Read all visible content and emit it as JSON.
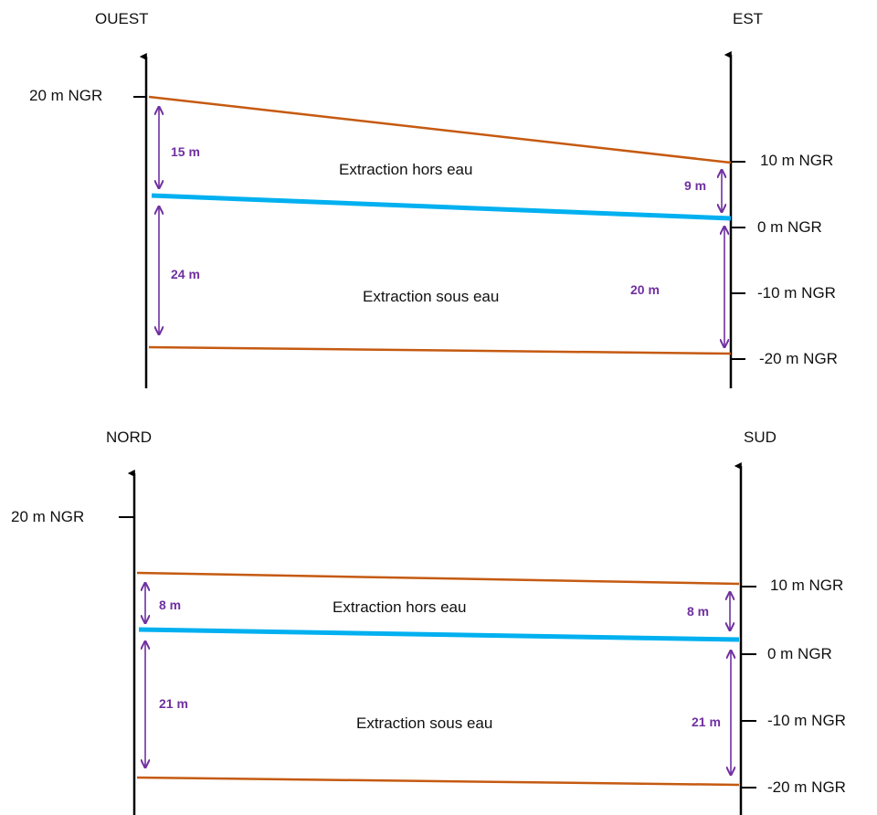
{
  "colors": {
    "terrain": "#c55a11",
    "water": "#00b0f0",
    "dimension": "#7030a0",
    "axis": "#000000"
  },
  "section_ouest_est": {
    "left_title": "OUEST",
    "right_title": "EST",
    "left_label_top": "20 m NGR",
    "right_labels": [
      "10 m NGR",
      "0 m NGR",
      "-10 m NGR",
      "-20 m NGR"
    ],
    "zone_top": "Extraction hors eau",
    "zone_bottom": "Extraction sous eau",
    "dim_left_upper": "15 m",
    "dim_left_lower": "24 m",
    "dim_right_upper": "9 m",
    "dim_right_lower": "20 m"
  },
  "section_nord_sud": {
    "left_title": "NORD",
    "right_title": "SUD",
    "left_label_top": "20 m NGR",
    "right_labels": [
      "10 m NGR",
      "0 m NGR",
      "-10 m NGR",
      "-20 m NGR"
    ],
    "zone_top": "Extraction hors eau",
    "zone_bottom": "Extraction sous eau",
    "dim_left_upper": "8 m",
    "dim_left_lower": "21 m",
    "dim_right_upper": "8 m",
    "dim_right_lower": "21 m"
  }
}
